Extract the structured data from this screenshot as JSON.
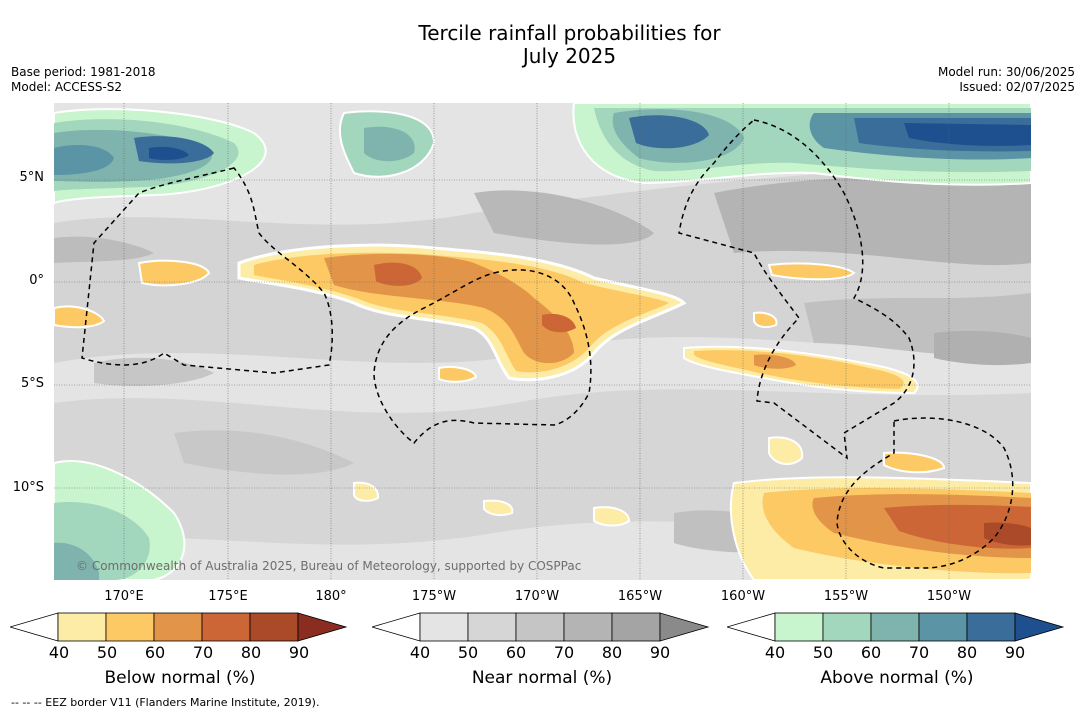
{
  "title_line1": "Tercile rainfall probabilities for",
  "title_line2": "July 2025",
  "base_period": "Base period: 1981-2018",
  "model": "Model: ACCESS-S2",
  "model_run": "Model run: 30/06/2025",
  "issued": "Issued: 02/07/2025",
  "copyright": "© Commonwealth of Australia 2025, Bureau of Meteorology, supported by COSPPac",
  "lat_labels": [
    "5°N",
    "0°",
    "5°S",
    "10°S"
  ],
  "lon_labels": [
    "170°E",
    "175°E",
    "180°",
    "175°W",
    "170°W",
    "165°W",
    "160°W",
    "155°W",
    "150°W"
  ],
  "colorbars": [
    {
      "title": "Below normal (%)",
      "ticks": [
        "40",
        "50",
        "60",
        "70",
        "80",
        "90"
      ],
      "colors": [
        "#ffffff",
        "#fdeca6",
        "#fdc965",
        "#e29448",
        "#cc6636",
        "#ab4a28",
        "#8a2c20"
      ]
    },
    {
      "title": "Near normal (%)",
      "ticks": [
        "40",
        "50",
        "60",
        "70",
        "80",
        "90"
      ],
      "colors": [
        "#ffffff",
        "#e4e4e4",
        "#d6d6d6",
        "#c5c5c5",
        "#b4b4b4",
        "#a4a4a4",
        "#8a8a8a"
      ]
    },
    {
      "title": "Above normal (%)",
      "ticks": [
        "40",
        "50",
        "60",
        "70",
        "80",
        "90"
      ],
      "colors": [
        "#ffffff",
        "#c8f5cd",
        "#a2d6bd",
        "#7fb3ad",
        "#5a94a5",
        "#3a6d99",
        "#1e5090"
      ]
    }
  ],
  "eez_note": "--  --  -- EEZ border V11 (Flanders Marine Institute, 2019)."
}
